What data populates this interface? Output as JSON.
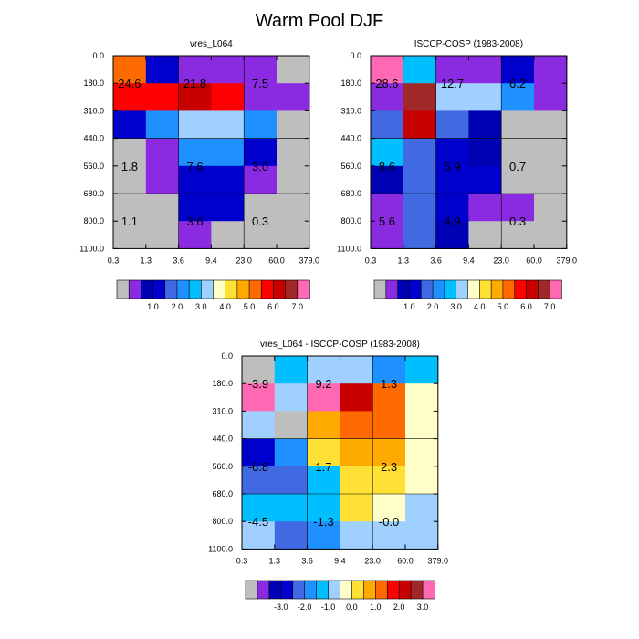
{
  "figure_title": "Warm Pool DJF",
  "chart_data": [
    {
      "type": "heatmap",
      "title": "vres_L064",
      "x_tick_labels": [
        "0.3",
        "1.3",
        "3.6",
        "9.4",
        "23.0",
        "60.0",
        "379.0"
      ],
      "y_tick_labels": [
        "0.0",
        "180.0",
        "310.0",
        "440.0",
        "560.0",
        "680.0",
        "800.0",
        "1100.0"
      ],
      "cells": [
        [
          11,
          3,
          1,
          1,
          1,
          0
        ],
        [
          12,
          12,
          13,
          12,
          1,
          1
        ],
        [
          3,
          5,
          7,
          7,
          5,
          0
        ],
        [
          0,
          1,
          5,
          5,
          3,
          0
        ],
        [
          0,
          1,
          3,
          3,
          1,
          0
        ],
        [
          0,
          0,
          3,
          3,
          0,
          0
        ],
        [
          0,
          0,
          1,
          0,
          0,
          0
        ]
      ],
      "annotations": [
        {
          "text": "24.6",
          "col": 0.5,
          "row": 1.0
        },
        {
          "text": "21.8",
          "col": 2.5,
          "row": 1.0
        },
        {
          "text": "7.5",
          "col": 4.5,
          "row": 1.0
        },
        {
          "text": "1.8",
          "col": 0.5,
          "row": 4.0
        },
        {
          "text": "7.6",
          "col": 2.5,
          "row": 4.0
        },
        {
          "text": "3.0",
          "col": 4.5,
          "row": 4.0
        },
        {
          "text": "1.1",
          "col": 0.5,
          "row": 6.0
        },
        {
          "text": "3.6",
          "col": 2.5,
          "row": 6.0
        },
        {
          "text": "0.3",
          "col": 4.5,
          "row": 6.0
        }
      ],
      "colorbar_labels": [
        "1.0",
        "2.0",
        "3.0",
        "4.0",
        "5.0",
        "6.0",
        "7.0"
      ]
    },
    {
      "type": "heatmap",
      "title": "ISCCP-COSP (1983-2008)",
      "x_tick_labels": [
        "0.3",
        "1.3",
        "3.6",
        "9.4",
        "23.0",
        "60.0",
        "379.0"
      ],
      "y_tick_labels": [
        "0.0",
        "180.0",
        "310.0",
        "440.0",
        "560.0",
        "680.0",
        "800.0",
        "1100.0"
      ],
      "cells": [
        [
          15,
          6,
          1,
          1,
          3,
          1
        ],
        [
          1,
          14,
          7,
          7,
          5,
          1
        ],
        [
          4,
          13,
          4,
          2,
          0,
          0
        ],
        [
          6,
          4,
          3,
          2,
          0,
          0
        ],
        [
          2,
          4,
          3,
          3,
          0,
          0
        ],
        [
          1,
          4,
          3,
          1,
          1,
          0
        ],
        [
          1,
          4,
          2,
          0,
          0,
          0
        ]
      ],
      "annotations": [
        {
          "text": "28.6",
          "col": 0.5,
          "row": 1.0
        },
        {
          "text": "12.7",
          "col": 2.5,
          "row": 1.0
        },
        {
          "text": "6.2",
          "col": 4.5,
          "row": 1.0
        },
        {
          "text": "8.6",
          "col": 0.5,
          "row": 4.0
        },
        {
          "text": "5.9",
          "col": 2.5,
          "row": 4.0
        },
        {
          "text": "0.7",
          "col": 4.5,
          "row": 4.0
        },
        {
          "text": "5.6",
          "col": 0.5,
          "row": 6.0
        },
        {
          "text": "4.9",
          "col": 2.5,
          "row": 6.0
        },
        {
          "text": "0.3",
          "col": 4.5,
          "row": 6.0
        }
      ],
      "colorbar_labels": [
        "1.0",
        "2.0",
        "3.0",
        "4.0",
        "5.0",
        "6.0",
        "7.0"
      ]
    },
    {
      "type": "heatmap",
      "title": "vres_L064 - ISCCP-COSP (1983-2008)",
      "x_tick_labels": [
        "0.3",
        "1.3",
        "3.6",
        "9.4",
        "23.0",
        "60.0",
        "379.0"
      ],
      "y_tick_labels": [
        "0.0",
        "180.0",
        "310.0",
        "440.0",
        "560.0",
        "680.0",
        "800.0",
        "1100.0"
      ],
      "cells": [
        [
          0,
          6,
          7,
          7,
          5,
          6
        ],
        [
          15,
          7,
          15,
          13,
          11,
          8
        ],
        [
          7,
          0,
          10,
          11,
          11,
          8
        ],
        [
          3,
          5,
          9,
          10,
          10,
          8
        ],
        [
          4,
          4,
          6,
          9,
          9,
          8
        ],
        [
          6,
          6,
          6,
          9,
          8,
          7
        ],
        [
          7,
          4,
          5,
          7,
          7,
          7
        ]
      ],
      "annotations": [
        {
          "text": "-3.9",
          "col": 0.5,
          "row": 1.0
        },
        {
          "text": "9.2",
          "col": 2.5,
          "row": 1.0
        },
        {
          "text": "1.3",
          "col": 4.5,
          "row": 1.0
        },
        {
          "text": "-6.8",
          "col": 0.5,
          "row": 4.0
        },
        {
          "text": "1.7",
          "col": 2.5,
          "row": 4.0
        },
        {
          "text": "2.3",
          "col": 4.5,
          "row": 4.0
        },
        {
          "text": "-4.5",
          "col": 0.5,
          "row": 6.0
        },
        {
          "text": "-1.3",
          "col": 2.5,
          "row": 6.0
        },
        {
          "text": "-0.0",
          "col": 4.5,
          "row": 6.0
        }
      ],
      "colorbar_labels": [
        "-3.0",
        "-2.0",
        "-1.0",
        "0.0",
        "1.0",
        "2.0",
        "3.0"
      ]
    }
  ],
  "palette": [
    "#bebebe",
    "#8a2be2",
    "#0000b4",
    "#0000cd",
    "#4169e1",
    "#1e90ff",
    "#00bfff",
    "#a0d0ff",
    "#ffffc8",
    "#ffe135",
    "#ffaa00",
    "#ff6a00",
    "#ff0000",
    "#c80000",
    "#a02828",
    "#ff69b4"
  ]
}
